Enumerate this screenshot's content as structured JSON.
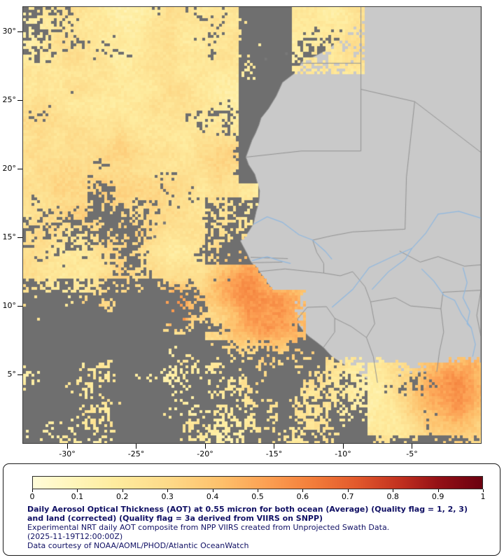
{
  "map": {
    "axes": {
      "lon_min": -33.2,
      "lon_max": 0,
      "lat_min": 0,
      "lat_max": 31.8,
      "lat_ticks": [
        {
          "v": 30,
          "label": "30°"
        },
        {
          "v": 25,
          "label": "25°"
        },
        {
          "v": 20,
          "label": "20°"
        },
        {
          "v": 15,
          "label": "15°"
        },
        {
          "v": 10,
          "label": "10°"
        },
        {
          "v": 5,
          "label": "5°"
        }
      ],
      "lon_ticks": [
        {
          "v": -30,
          "label": "-30°"
        },
        {
          "v": -25,
          "label": "-25°"
        },
        {
          "v": -20,
          "label": "-20°"
        },
        {
          "v": -15,
          "label": "-15°"
        },
        {
          "v": -10,
          "label": "-10°"
        },
        {
          "v": -5,
          "label": "-5°"
        }
      ]
    },
    "colors": {
      "ocean_nodata": "#6f6f6f",
      "land": "#c9c9c9",
      "coast": "#8a8a8a",
      "border": "#929292",
      "river": "#8fb8e0",
      "island": "#787878",
      "axis_text": "#000000"
    },
    "features": {
      "coastline": [
        [
          -9.0,
          31.9
        ],
        [
          -9.7,
          30.9
        ],
        [
          -9.85,
          30.4
        ],
        [
          -9.7,
          29.9
        ],
        [
          -10.2,
          29.4
        ],
        [
          -11.3,
          28.6
        ],
        [
          -12.1,
          28.2
        ],
        [
          -13.0,
          27.8
        ],
        [
          -13.35,
          27.1
        ],
        [
          -14.4,
          26.3
        ],
        [
          -14.85,
          25.3
        ],
        [
          -15.4,
          24.4
        ],
        [
          -15.95,
          23.7
        ],
        [
          -16.1,
          23.2
        ],
        [
          -16.35,
          22.6
        ],
        [
          -16.6,
          22.1
        ],
        [
          -17.05,
          20.85
        ],
        [
          -16.85,
          20.3
        ],
        [
          -16.4,
          19.6
        ],
        [
          -16.25,
          19.1
        ],
        [
          -16.05,
          18.4
        ],
        [
          -16.1,
          17.6
        ],
        [
          -16.3,
          16.9
        ],
        [
          -16.5,
          16.0
        ],
        [
          -16.8,
          15.5
        ],
        [
          -17.15,
          15.0
        ],
        [
          -17.45,
          14.75
        ],
        [
          -17.3,
          14.45
        ],
        [
          -16.95,
          13.8
        ],
        [
          -16.75,
          13.35
        ],
        [
          -16.6,
          13.1
        ],
        [
          -16.3,
          12.85
        ],
        [
          -16.1,
          12.55
        ],
        [
          -15.85,
          12.2
        ],
        [
          -15.5,
          11.7
        ],
        [
          -15.05,
          11.1
        ],
        [
          -14.65,
          10.65
        ],
        [
          -14.05,
          10.05
        ],
        [
          -13.7,
          9.5
        ],
        [
          -13.3,
          9.05
        ],
        [
          -13.2,
          8.6
        ],
        [
          -12.9,
          8.2
        ],
        [
          -12.5,
          7.8
        ],
        [
          -11.9,
          7.35
        ],
        [
          -11.4,
          6.95
        ],
        [
          -10.8,
          6.3
        ],
        [
          -10.2,
          5.9
        ],
        [
          -9.5,
          5.45
        ],
        [
          -9.0,
          5.1
        ],
        [
          -8.3,
          4.7
        ],
        [
          -7.55,
          4.35
        ],
        [
          -6.7,
          4.75
        ],
        [
          -5.8,
          4.95
        ],
        [
          -4.9,
          5.1
        ],
        [
          -4.0,
          5.2
        ],
        [
          -3.1,
          5.05
        ],
        [
          -2.1,
          4.95
        ],
        [
          -1.2,
          5.35
        ],
        [
          -0.3,
          5.6
        ],
        [
          0.0,
          5.75
        ],
        [
          0.0,
          31.9
        ]
      ],
      "borders": [
        [
          [
            -8.7,
            31.9
          ],
          [
            -8.7,
            21.3
          ]
        ],
        [
          [
            -13.2,
            27.7
          ],
          [
            -8.7,
            27.7
          ]
        ],
        [
          [
            -17.05,
            20.85
          ],
          [
            -13.0,
            21.3
          ],
          [
            -8.7,
            21.3
          ]
        ],
        [
          [
            -8.7,
            25.8
          ],
          [
            -4.8,
            24.9
          ],
          [
            0,
            21.2
          ]
        ],
        [
          [
            -4.8,
            24.9
          ],
          [
            -5.4,
            19.4
          ],
          [
            -5.5,
            15.6
          ],
          [
            -9.3,
            15.4
          ],
          [
            -10.9,
            15.1
          ],
          [
            -12.2,
            14.8
          ]
        ],
        [
          [
            -12.2,
            14.8
          ],
          [
            -11.9,
            13.9
          ],
          [
            -11.4,
            13.1
          ],
          [
            -11.4,
            12.4
          ]
        ],
        [
          [
            -16.7,
            12.45
          ],
          [
            -14.2,
            12.7
          ],
          [
            -11.4,
            12.4
          ]
        ],
        [
          [
            -16.7,
            13.55
          ],
          [
            -14.0,
            13.45
          ]
        ],
        [
          [
            -16.7,
            13.15
          ],
          [
            -14.4,
            13.2
          ]
        ],
        [
          [
            -11.4,
            12.4
          ],
          [
            -10.2,
            12.2
          ],
          [
            -9.3,
            12.5
          ],
          [
            -8.4,
            11.4
          ],
          [
            -8.0,
            10.3
          ],
          [
            -7.7,
            8.7
          ],
          [
            -8.3,
            7.7
          ],
          [
            -7.8,
            6.3
          ],
          [
            -7.5,
            4.4
          ]
        ],
        [
          [
            -13.3,
            9.05
          ],
          [
            -12.6,
            9.9
          ],
          [
            -11.2,
            9.95
          ],
          [
            -10.6,
            9.1
          ]
        ],
        [
          [
            -10.6,
            9.1
          ],
          [
            -9.4,
            8.5
          ],
          [
            -8.3,
            7.7
          ]
        ],
        [
          [
            -11.4,
            7.0
          ],
          [
            -10.6,
            8.1
          ],
          [
            -10.6,
            9.1
          ]
        ],
        [
          [
            -8.0,
            10.3
          ],
          [
            -6.2,
            10.6
          ],
          [
            -5.1,
            10.0
          ],
          [
            -2.9,
            9.8
          ]
        ],
        [
          [
            -5.9,
            14.0
          ],
          [
            -4.4,
            13.2
          ],
          [
            -3.1,
            13.6
          ],
          [
            -1.2,
            12.9
          ],
          [
            0,
            13.0
          ]
        ],
        [
          [
            -2.9,
            9.8
          ],
          [
            -2.75,
            11.0
          ],
          [
            0,
            11.15
          ]
        ],
        [
          [
            -3.2,
            5.2
          ],
          [
            -3.0,
            6.7
          ],
          [
            -2.7,
            8.1
          ],
          [
            -2.9,
            9.8
          ]
        ],
        [
          [
            0,
            11.15
          ],
          [
            -0.3,
            9.3
          ],
          [
            0,
            7.8
          ]
        ]
      ],
      "rivers": [
        [
          [
            -16.5,
            15.95
          ],
          [
            -15.5,
            16.5
          ],
          [
            -14.4,
            16.1
          ],
          [
            -13.2,
            15.2
          ],
          [
            -12.2,
            14.8
          ],
          [
            -11.3,
            14.0
          ],
          [
            -10.8,
            13.4
          ]
        ],
        [
          [
            -16.6,
            13.3
          ],
          [
            -15.5,
            13.6
          ],
          [
            -14.6,
            13.3
          ],
          [
            -13.8,
            13.1
          ]
        ],
        [
          [
            -10.8,
            9.9
          ],
          [
            -9.3,
            11.2
          ],
          [
            -8.1,
            12.8
          ],
          [
            -6.4,
            13.6
          ],
          [
            -5.0,
            14.2
          ],
          [
            -4.0,
            15.3
          ],
          [
            -3.1,
            16.7
          ],
          [
            -1.6,
            16.9
          ],
          [
            0,
            16.4
          ]
        ],
        [
          [
            -7.9,
            11.2
          ],
          [
            -6.7,
            12.5
          ],
          [
            -5.5,
            13.4
          ],
          [
            -5.0,
            14.2
          ]
        ],
        [
          [
            -4.3,
            12.7
          ],
          [
            -3.4,
            11.8
          ],
          [
            -2.7,
            10.8
          ],
          [
            -1.9,
            10.4
          ],
          [
            -1.4,
            9.4
          ],
          [
            -0.7,
            8.4
          ],
          [
            -0.4,
            7.2
          ],
          [
            -0.6,
            6.3
          ]
        ],
        [
          [
            -1.3,
            12.8
          ],
          [
            -1.0,
            11.7
          ],
          [
            -1.3,
            10.6
          ],
          [
            -0.8,
            9.6
          ],
          [
            -1.0,
            8.7
          ],
          [
            -0.7,
            8.4
          ]
        ]
      ],
      "islands": [
        [
          -23.65,
          15.05
        ],
        [
          -22.95,
          16.05
        ],
        [
          -15.6,
          28.0
        ],
        [
          -14.1,
          28.4
        ]
      ]
    },
    "aot": {
      "seed": 7,
      "cell": 4,
      "threshold": 0.63,
      "base": 0.1,
      "noise_amp": 0.2,
      "stops": [
        [
          0,
          "#FFFCD9"
        ],
        [
          0.08,
          "#FFF6BE"
        ],
        [
          0.18,
          "#FEEC9F"
        ],
        [
          0.3,
          "#FDDA89"
        ],
        [
          0.42,
          "#FDC06B"
        ],
        [
          0.52,
          "#FCA053"
        ],
        [
          0.62,
          "#F37E3B"
        ],
        [
          0.72,
          "#E2592C"
        ],
        [
          0.82,
          "#C02F1F"
        ],
        [
          0.9,
          "#951116"
        ],
        [
          1,
          "#6B0010"
        ]
      ],
      "cover_zones": [
        {
          "lon": [
            -33.3,
            -13.5
          ],
          "lat": [
            18,
            32
          ],
          "bias": 0.42
        },
        {
          "lon": [
            -33.3,
            -20
          ],
          "lat": [
            12,
            18
          ],
          "bias": 0.32
        },
        {
          "lon": [
            -20,
            -12.6
          ],
          "lat": [
            7.5,
            13
          ],
          "bias": 0.38
        },
        {
          "lon": [
            -33.3,
            -23
          ],
          "lat": [
            0,
            11
          ],
          "bias": -0.18
        },
        {
          "lon": [
            -17.6,
            -13.8
          ],
          "lat": [
            19,
            32
          ],
          "bias": -0.62
        },
        {
          "lon": [
            -8.2,
            0.1
          ],
          "lat": [
            0.5,
            5.9
          ],
          "bias": 0.5
        },
        {
          "lon": [
            -13.5,
            -8.4
          ],
          "lat": [
            26.9,
            32
          ],
          "bias": 0.45
        },
        {
          "lon": [
            -23.5,
            -20
          ],
          "lat": [
            8,
            12.5
          ],
          "bias": 0.15
        },
        {
          "lon": [
            -12.5,
            -6
          ],
          "lat": [
            2.5,
            6.6
          ],
          "bias": 0.08
        }
      ],
      "land_zones": [
        {
          "lon": [
            -14.4,
            -8.4
          ],
          "lat": [
            26.9,
            32
          ]
        },
        {
          "lon": [
            -33,
            -12.6
          ],
          "lat": [
            7.2,
            11.2
          ]
        },
        {
          "lon": [
            -8.6,
            0.1
          ],
          "lat": [
            3.5,
            6.2
          ]
        },
        {
          "lon": [
            -12.6,
            -8.6
          ],
          "lat": [
            3.0,
            6.2
          ]
        }
      ],
      "hotspots": [
        [
          -15.2,
          9.2,
          2.4,
          0.36
        ],
        [
          -17.4,
          12.1,
          1.5,
          0.2
        ],
        [
          -22.3,
          10.1,
          1.3,
          0.26
        ],
        [
          -22.1,
          9.0,
          0.32,
          0.6
        ],
        [
          -28.7,
          9.3,
          0.8,
          0.26
        ],
        [
          -2.0,
          3.6,
          2.2,
          0.4
        ],
        [
          -26.5,
          16.5,
          4.0,
          0.1
        ],
        [
          -18.2,
          20.8,
          1.4,
          0.12
        ],
        [
          -29.5,
          21.5,
          4.5,
          0.05
        ]
      ]
    }
  },
  "legend": {
    "ticks": [
      "0",
      "0.1",
      "0.2",
      "0.3",
      "0.4",
      "0.5",
      "0.6",
      "0.7",
      "0.8",
      "0.9",
      "1"
    ],
    "text_color": "#101064",
    "caption_bold": "Daily Aerosol Optical Thickness (AOT) at 0.55 micron for both ocean (Average) (Quality flag = 1, 2, 3) and land (corrected) (Quality flag = 3a derived from VIIRS on SNPP)",
    "line2": "Experimental NRT daily AOT composite from NPP VIIRS created from Unprojected Swath Data.",
    "line3": "(2025-11-19T12:00:00Z)",
    "line4": "Data courtesy of NOAA/AOML/PHOD/Atlantic OceanWatch"
  }
}
